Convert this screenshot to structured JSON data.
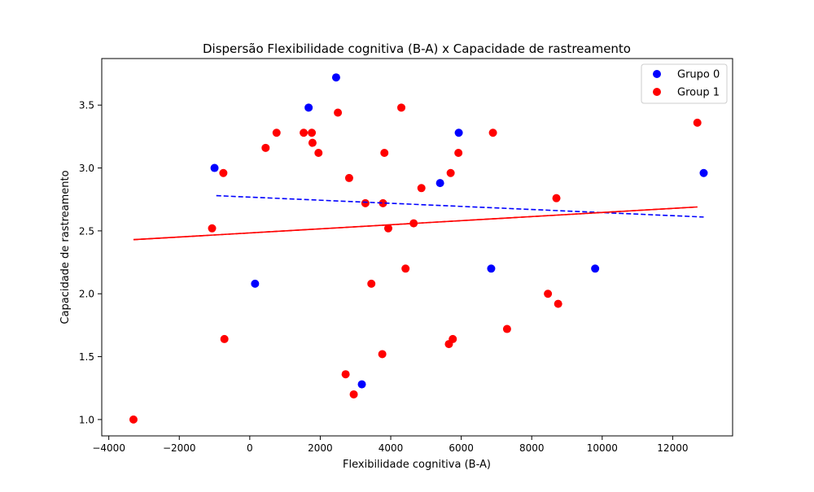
{
  "chart_data": {
    "type": "scatter",
    "title": "Dispersão Flexibilidade cognitiva (B-A) x Capacidade de rastreamento",
    "xlabel": "Flexibilidade cognitiva (B-A)",
    "ylabel": "Capacidade de rastreamento",
    "xlim": [
      -4200,
      13700
    ],
    "ylim": [
      0.87,
      3.87
    ],
    "xticks": [
      -4000,
      -2000,
      0,
      2000,
      4000,
      6000,
      8000,
      10000,
      12000
    ],
    "xtick_labels": [
      "−4000",
      "−2000",
      "0",
      "2000",
      "4000",
      "6000",
      "8000",
      "10000",
      "12000"
    ],
    "yticks": [
      1.0,
      1.5,
      2.0,
      2.5,
      3.0,
      3.5
    ],
    "ytick_labels": [
      "1.0",
      "1.5",
      "2.0",
      "2.5",
      "3.0",
      "3.5"
    ],
    "grid": false,
    "legend_position": "top-right",
    "series": [
      {
        "name": "Grupo 0",
        "color": "#0000ff",
        "points": [
          [
            -1000,
            3.0
          ],
          [
            150,
            2.08
          ],
          [
            1670,
            3.48
          ],
          [
            2450,
            3.72
          ],
          [
            3180,
            1.28
          ],
          [
            5400,
            2.88
          ],
          [
            5930,
            3.28
          ],
          [
            6850,
            2.2
          ],
          [
            9800,
            2.2
          ],
          [
            12880,
            2.96
          ]
        ],
        "trendline": {
          "x": [
            -950,
            12880
          ],
          "y": [
            2.78,
            2.61
          ],
          "style": "dashed"
        }
      },
      {
        "name": "Group 1",
        "color": "#ff0000",
        "points": [
          [
            -3300,
            1.0
          ],
          [
            -1070,
            2.52
          ],
          [
            -750,
            2.96
          ],
          [
            -720,
            1.64
          ],
          [
            450,
            3.16
          ],
          [
            760,
            3.28
          ],
          [
            1530,
            3.28
          ],
          [
            1760,
            3.28
          ],
          [
            1780,
            3.2
          ],
          [
            1950,
            3.12
          ],
          [
            2500,
            3.44
          ],
          [
            2720,
            1.36
          ],
          [
            2820,
            2.92
          ],
          [
            2950,
            1.2
          ],
          [
            3280,
            2.72
          ],
          [
            3450,
            2.08
          ],
          [
            3760,
            1.52
          ],
          [
            3780,
            2.72
          ],
          [
            3820,
            3.12
          ],
          [
            3930,
            2.52
          ],
          [
            4300,
            3.48
          ],
          [
            4420,
            2.2
          ],
          [
            4650,
            2.56
          ],
          [
            4870,
            2.84
          ],
          [
            5650,
            1.6
          ],
          [
            5700,
            2.96
          ],
          [
            5760,
            1.64
          ],
          [
            5920,
            3.12
          ],
          [
            6900,
            3.28
          ],
          [
            7300,
            1.72
          ],
          [
            8460,
            2.0
          ],
          [
            8700,
            2.76
          ],
          [
            8750,
            1.92
          ],
          [
            12700,
            3.36
          ]
        ],
        "trendline": {
          "x": [
            -3300,
            12700
          ],
          "y": [
            2.43,
            2.69
          ],
          "style": "solid+dashed"
        }
      }
    ]
  }
}
